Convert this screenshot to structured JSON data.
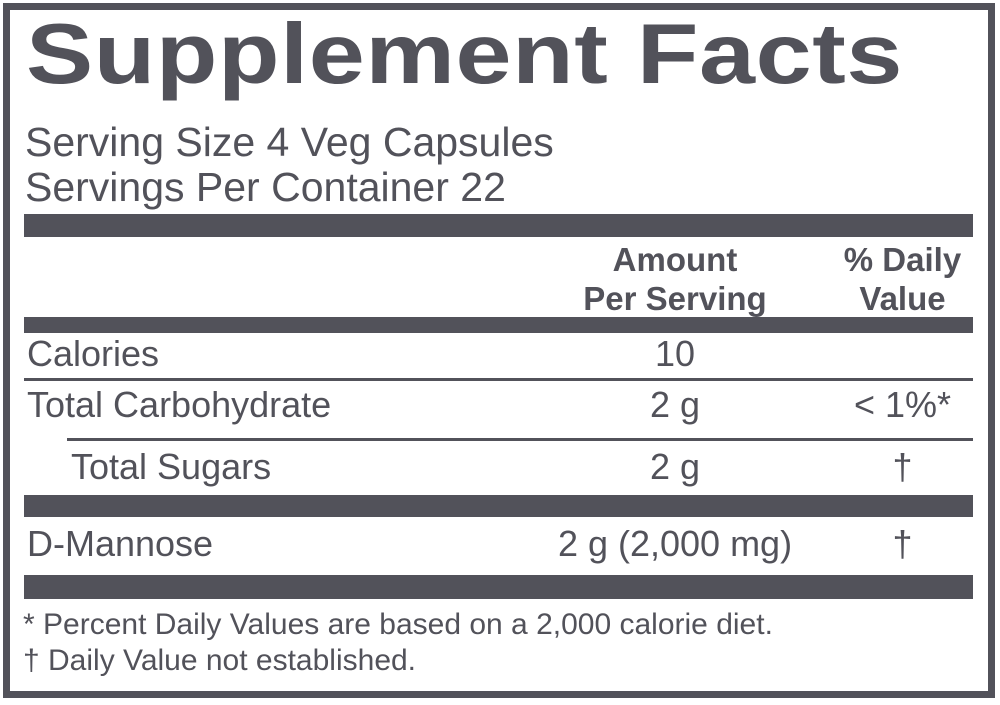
{
  "colors": {
    "ink": "#52525a",
    "background": "#ffffff"
  },
  "label": {
    "title": "Supplement Facts",
    "serving_size": "Serving Size 4 Veg Capsules",
    "servings_per_container": "Servings Per Container 22",
    "header": {
      "amount_line1": "Amount",
      "amount_line2": "Per Serving",
      "daily_value_line1": "% Daily",
      "daily_value_line2": "Value"
    },
    "rows": [
      {
        "name": "Calories",
        "amount": "10",
        "daily_value": ""
      },
      {
        "name": "Total Carbohydrate",
        "amount": "2 g",
        "daily_value": "< 1%*"
      },
      {
        "name": "Total Sugars",
        "amount": "2 g",
        "daily_value": "†",
        "indented": true
      },
      {
        "name": "D-Mannose",
        "amount": "2 g (2,000 mg)",
        "daily_value": "†"
      }
    ],
    "footnotes": [
      "* Percent Daily Values are based on a 2,000 calorie diet.",
      "† Daily Value not established."
    ]
  }
}
